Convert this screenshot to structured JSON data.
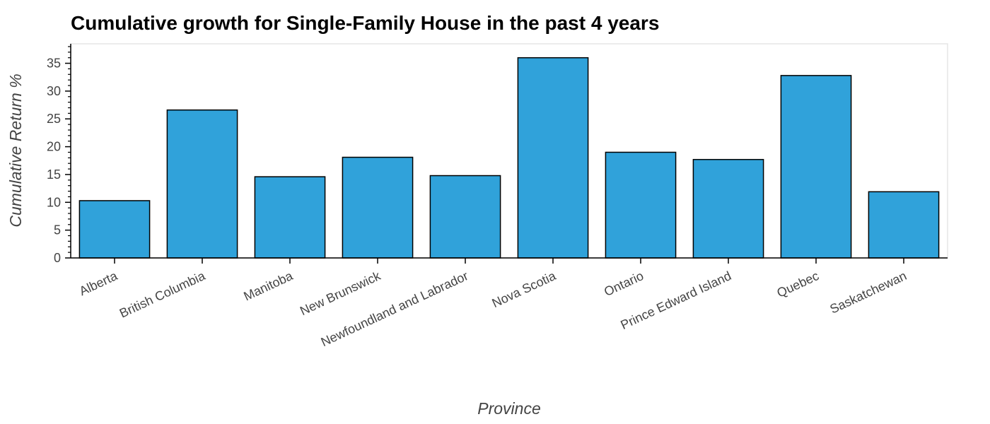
{
  "chart_data": {
    "type": "bar",
    "title": "Cumulative growth for Single-Family House in the past 4 years",
    "xlabel": "Province",
    "ylabel": "Cumulative Return %",
    "categories": [
      "Alberta",
      "British Columbia",
      "Manitoba",
      "New Brunswick",
      "Newfoundland and Labrador",
      "Nova Scotia",
      "Ontario",
      "Prince Edward Island",
      "Quebec",
      "Saskatchewan"
    ],
    "values": [
      10.3,
      26.6,
      14.6,
      18.1,
      14.8,
      36.0,
      19.0,
      17.7,
      32.8,
      11.9
    ],
    "ylim": [
      0,
      38.5
    ],
    "yticks": [
      0,
      5,
      10,
      15,
      20,
      25,
      30,
      35
    ],
    "grid": false,
    "legend": "none",
    "colors": {
      "bar": "#30a2da",
      "bar_outline": "#000000",
      "frame": "#e5e5e5",
      "axis": "#000000"
    }
  }
}
